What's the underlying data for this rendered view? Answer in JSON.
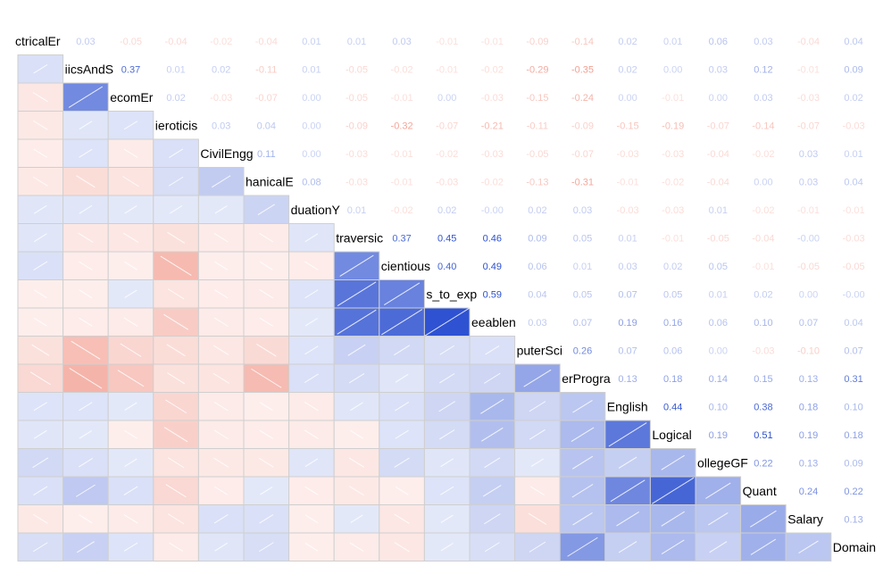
{
  "chart_data": {
    "type": "heatmap",
    "title": "",
    "colors": {
      "positive": "#2b4fd0",
      "negative": "#f08a7a",
      "neutral": "#ffffff"
    },
    "variables": [
      "ElectricalEngg",
      "ElectronicsAndSemicon",
      "TelecomEngg",
      "Neuroticism",
      "CivilEngg",
      "MechanicalEngg",
      "GraduationYear",
      "Extraversion",
      "Conscientiousness",
      "Openness_to_experience",
      "Agreeableness",
      "ComputerScience",
      "ComputerProgramming",
      "English",
      "Logical",
      "CollegeGPA",
      "Quant",
      "Salary",
      "Domain"
    ],
    "labels": [
      "ctricalEr",
      "iicsAndS",
      "ecomEr",
      "ieroticis",
      "CivilEngg",
      "hanicalE",
      "duationY",
      "traversic",
      "cientious",
      "s_to_exp",
      "eeablen",
      "puterSci",
      "erProgra",
      "English",
      "Logical",
      "ollegeGF",
      "Quant",
      "Salary",
      "Domain"
    ],
    "upper": [
      [
        "0.03",
        "-0.05",
        "-0.04",
        "-0.02",
        "-0.04",
        "0.01",
        "0.01",
        "0.03",
        "-0.01",
        "-0.01",
        "-0.09",
        "-0.14",
        "0.02",
        "0.01",
        "0.06",
        "0.03",
        "-0.04",
        "0.04"
      ],
      [
        "0.37",
        "0.01",
        "0.02",
        "-0.11",
        "0.01",
        "-0.05",
        "-0.02",
        "-0.01",
        "-0.02",
        "-0.29",
        "-0.35",
        "0.02",
        "0.00",
        "0.03",
        "0.12",
        "-0.01",
        "0.09"
      ],
      [
        "0.02",
        "-0.03",
        "-0.07",
        "0.00",
        "-0.05",
        "-0.01",
        "0.00",
        "-0.03",
        "-0.15",
        "-0.24",
        "0.00",
        "-0.01",
        "0.00",
        "0.03",
        "-0.03",
        "0.02"
      ],
      [
        "0.03",
        "0.04",
        "0.00",
        "-0.09",
        "-0.32",
        "-0.07",
        "-0.21",
        "-0.11",
        "-0.09",
        "-0.15",
        "-0.19",
        "-0.07",
        "-0.14",
        "-0.07",
        "-0.03"
      ],
      [
        "0.11",
        "0.00",
        "-0.03",
        "-0.01",
        "-0.02",
        "-0.03",
        "-0.05",
        "-0.07",
        "-0.03",
        "-0.03",
        "-0.04",
        "-0.02",
        "0.03",
        "0.01"
      ],
      [
        "0.08",
        "-0.03",
        "-0.01",
        "-0.03",
        "-0.02",
        "-0.13",
        "-0.31",
        "-0.01",
        "-0.02",
        "-0.04",
        "0.00",
        "0.03",
        "0.04"
      ],
      [
        "0.01",
        "-0.02",
        "0.02",
        "-0.00",
        "0.02",
        "0.03",
        "-0.03",
        "-0.03",
        "0.01",
        "-0.02",
        "-0.01",
        "-0.01"
      ],
      [
        "0.37",
        "0.45",
        "0.46",
        "0.09",
        "0.05",
        "0.01",
        "-0.01",
        "-0.05",
        "-0.04",
        "-0.00",
        "-0.03"
      ],
      [
        "0.40",
        "0.49",
        "0.06",
        "0.01",
        "0.03",
        "0.02",
        "0.05",
        "-0.01",
        "-0.05",
        "-0.05"
      ],
      [
        "0.59",
        "0.04",
        "0.05",
        "0.07",
        "0.05",
        "0.01",
        "0.02",
        "0.00",
        "-0.00"
      ],
      [
        "0.03",
        "0.07",
        "0.19",
        "0.16",
        "0.06",
        "0.10",
        "0.07",
        "0.04"
      ],
      [
        "0.26",
        "0.07",
        "0.06",
        "0.00",
        "-0.03",
        "-0.10",
        "0.07"
      ],
      [
        "0.13",
        "0.18",
        "0.14",
        "0.15",
        "0.13",
        "0.31"
      ],
      [
        "0.44",
        "0.10",
        "0.38",
        "0.18",
        "0.10"
      ],
      [
        "0.19",
        "0.51",
        "0.19",
        "0.18"
      ],
      [
        "0.22",
        "0.13",
        "0.09"
      ],
      [
        "0.24",
        "0.22"
      ],
      [
        "0.13"
      ]
    ]
  }
}
